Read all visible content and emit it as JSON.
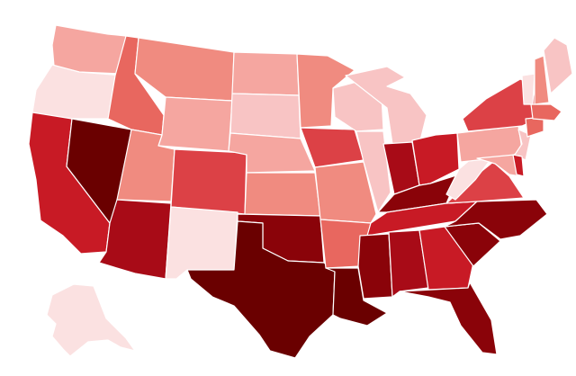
{
  "map": {
    "type": "choropleth",
    "region": "United States",
    "palette": [
      "#fbe1e1",
      "#f8c4c4",
      "#f5a6a0",
      "#f08b80",
      "#e8675f",
      "#dc4146",
      "#c81a25",
      "#a80b17",
      "#8a0309",
      "#6a0000"
    ],
    "states": [
      {
        "id": "WA",
        "level": 2
      },
      {
        "id": "OR",
        "level": 0
      },
      {
        "id": "CA",
        "level": 6
      },
      {
        "id": "NV",
        "level": 9
      },
      {
        "id": "ID",
        "level": 4
      },
      {
        "id": "MT",
        "level": 3
      },
      {
        "id": "WY",
        "level": 2
      },
      {
        "id": "UT",
        "level": 3
      },
      {
        "id": "AZ",
        "level": 7
      },
      {
        "id": "CO",
        "level": 5
      },
      {
        "id": "NM",
        "level": 0
      },
      {
        "id": "ND",
        "level": 2
      },
      {
        "id": "SD",
        "level": 1
      },
      {
        "id": "NE",
        "level": 2
      },
      {
        "id": "KS",
        "level": 3
      },
      {
        "id": "OK",
        "level": 8
      },
      {
        "id": "TX",
        "level": 9
      },
      {
        "id": "MN",
        "level": 3
      },
      {
        "id": "IA",
        "level": 5
      },
      {
        "id": "MO",
        "level": 3
      },
      {
        "id": "AR",
        "level": 4
      },
      {
        "id": "LA",
        "level": 9
      },
      {
        "id": "WI",
        "level": 1
      },
      {
        "id": "IL",
        "level": 1
      },
      {
        "id": "MI",
        "level": 1
      },
      {
        "id": "IN",
        "level": 7
      },
      {
        "id": "OH",
        "level": 6
      },
      {
        "id": "KY",
        "level": 8
      },
      {
        "id": "TN",
        "level": 6
      },
      {
        "id": "MS",
        "level": 8
      },
      {
        "id": "AL",
        "level": 7
      },
      {
        "id": "GA",
        "level": 6
      },
      {
        "id": "FL",
        "level": 8
      },
      {
        "id": "SC",
        "level": 8
      },
      {
        "id": "NC",
        "level": 8
      },
      {
        "id": "VA",
        "level": 5
      },
      {
        "id": "WV",
        "level": 0
      },
      {
        "id": "PA",
        "level": 2
      },
      {
        "id": "NY",
        "level": 5
      },
      {
        "id": "VT",
        "level": 0
      },
      {
        "id": "NH",
        "level": 3
      },
      {
        "id": "ME",
        "level": 1
      },
      {
        "id": "MA",
        "level": 4
      },
      {
        "id": "CT",
        "level": 4
      },
      {
        "id": "NJ",
        "level": 1
      },
      {
        "id": "MD",
        "level": 2
      },
      {
        "id": "DE",
        "level": 6
      },
      {
        "id": "AK",
        "level": 0
      }
    ]
  }
}
